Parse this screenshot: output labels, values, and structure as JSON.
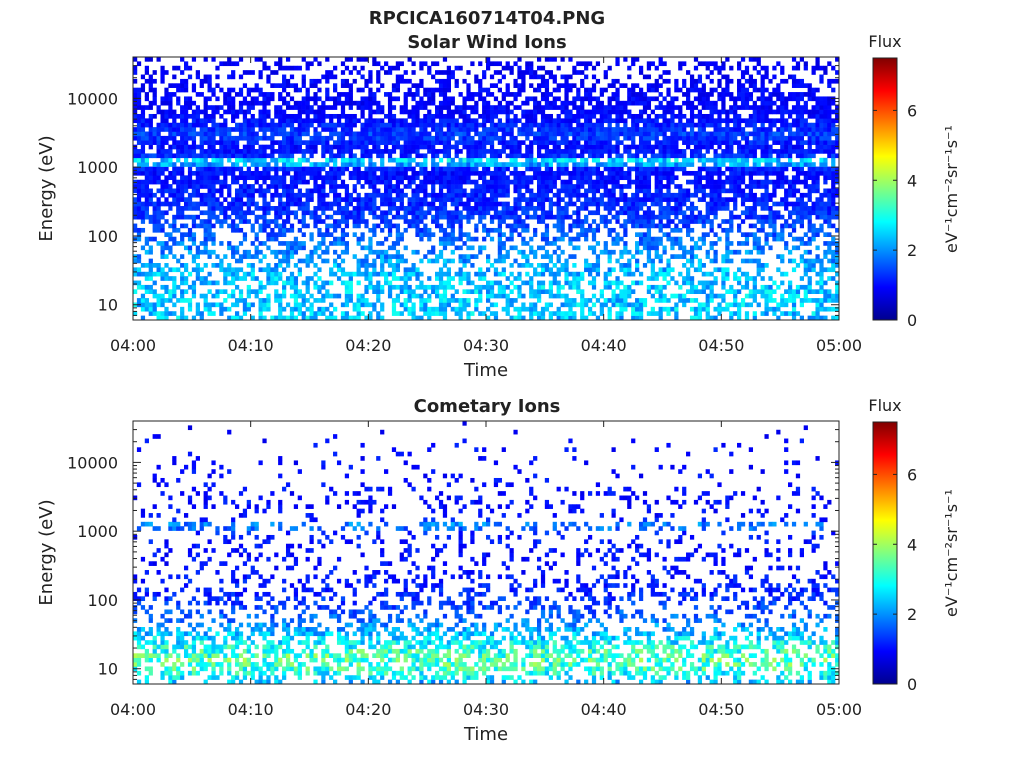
{
  "figure_title": "RPCICA160714T04.PNG",
  "colormap_stops": [
    "#00008f",
    "#0000ff",
    "#0080ff",
    "#00ffff",
    "#80ff80",
    "#ffff00",
    "#ff8000",
    "#ff0000",
    "#800000"
  ],
  "chart_data": [
    {
      "type": "heatmap",
      "title": "Solar Wind Ions",
      "xlabel": "Time",
      "ylabel": "Energy (eV)",
      "x_tick_labels": [
        "04:00",
        "04:10",
        "04:20",
        "04:30",
        "04:40",
        "04:50",
        "05:00"
      ],
      "x_range": [
        "04:00",
        "05:00"
      ],
      "y_scale": "log",
      "y_range": [
        6,
        40000
      ],
      "y_tick_values": [
        10,
        100,
        1000,
        10000
      ],
      "y_tick_labels": [
        "10",
        "100",
        "1000",
        "10000"
      ],
      "colorbar_title": "Flux",
      "colorbar_label": "eV⁻¹cm⁻²sr⁻¹s⁻¹",
      "colorbar_range": [
        0,
        7.5
      ],
      "colorbar_tick_labels": [
        "0",
        "2",
        "4",
        "6"
      ],
      "profile": {
        "energy_eV": [
          6,
          10,
          15,
          20,
          30,
          50,
          80,
          120,
          200,
          300,
          500,
          800,
          1000,
          1200,
          1500,
          2000,
          3000,
          5000,
          8000,
          12000,
          20000,
          35000
        ],
        "typical_flux": [
          2.4,
          2.4,
          2.4,
          2.4,
          2.3,
          2.0,
          1.8,
          1.5,
          1.3,
          1.2,
          1.1,
          1.0,
          1.2,
          3.0,
          1.1,
          1.0,
          1.4,
          1.0,
          0.9,
          0.9,
          0.9,
          0.8
        ],
        "occupancy": [
          0.55,
          0.55,
          0.55,
          0.5,
          0.55,
          0.45,
          0.5,
          0.5,
          0.75,
          0.8,
          0.75,
          0.85,
          0.85,
          0.75,
          0.75,
          0.85,
          0.9,
          0.8,
          0.65,
          0.6,
          0.4,
          0.25
        ]
      }
    },
    {
      "type": "heatmap",
      "title": "Cometary Ions",
      "xlabel": "Time",
      "ylabel": "Energy (eV)",
      "x_tick_labels": [
        "04:00",
        "04:10",
        "04:20",
        "04:30",
        "04:40",
        "04:50",
        "05:00"
      ],
      "x_range": [
        "04:00",
        "05:00"
      ],
      "y_scale": "log",
      "y_range": [
        6,
        40000
      ],
      "y_tick_values": [
        10,
        100,
        1000,
        10000
      ],
      "y_tick_labels": [
        "10",
        "100",
        "1000",
        "10000"
      ],
      "colorbar_title": "Flux",
      "colorbar_label": "eV⁻¹cm⁻²sr⁻¹s⁻¹",
      "colorbar_range": [
        0,
        7.5
      ],
      "colorbar_tick_labels": [
        "0",
        "2",
        "4",
        "6"
      ],
      "profile": {
        "energy_eV": [
          6,
          10,
          15,
          20,
          30,
          50,
          80,
          120,
          200,
          300,
          500,
          800,
          1000,
          1200,
          1500,
          2000,
          3000,
          5000,
          8000,
          12000,
          20000,
          35000
        ],
        "typical_flux": [
          2.2,
          3.2,
          3.4,
          3.0,
          2.4,
          1.8,
          1.4,
          1.2,
          1.1,
          1.0,
          1.0,
          1.1,
          1.2,
          2.2,
          1.0,
          1.0,
          1.0,
          1.0,
          1.0,
          1.0,
          1.0,
          0.8
        ],
        "occupancy": [
          0.35,
          0.6,
          0.6,
          0.6,
          0.55,
          0.3,
          0.35,
          0.4,
          0.25,
          0.2,
          0.2,
          0.15,
          0.15,
          0.4,
          0.1,
          0.15,
          0.2,
          0.1,
          0.08,
          0.05,
          0.04,
          0.02
        ]
      }
    }
  ]
}
